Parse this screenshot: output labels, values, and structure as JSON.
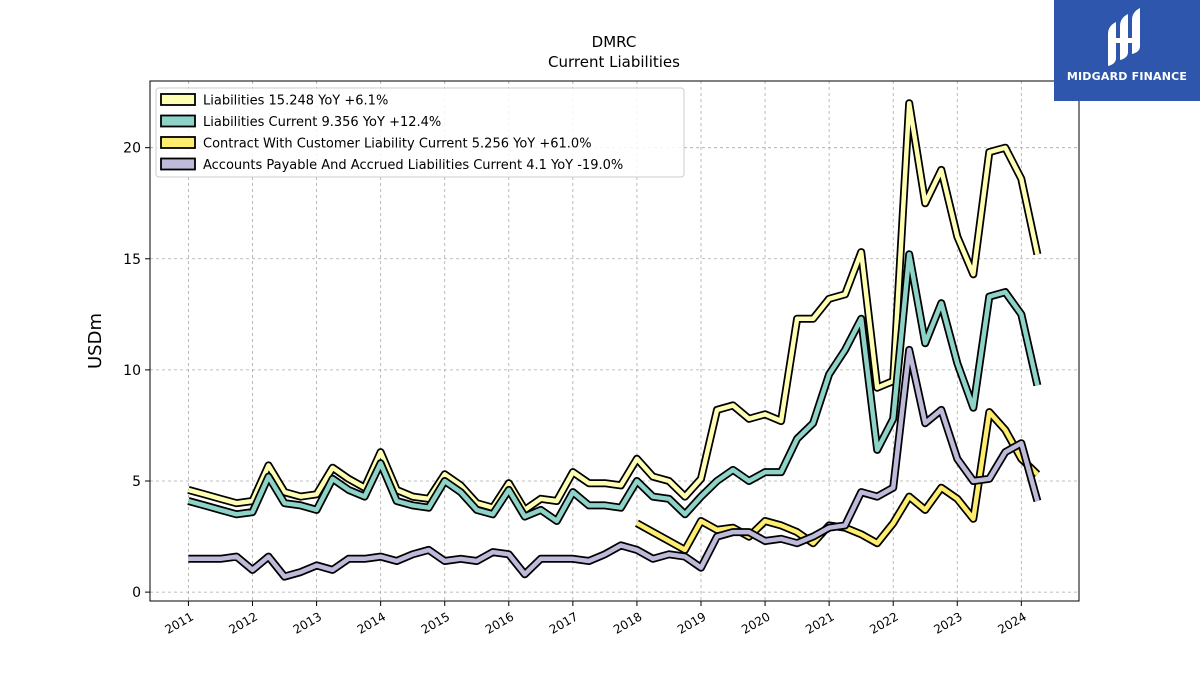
{
  "logo": {
    "text": "MIDGARD FINANCE",
    "bg_color": "#2d56ac"
  },
  "chart_data": {
    "type": "line",
    "title": "DMRC",
    "subtitle": "Current  Liabilities",
    "xlabel": "",
    "ylabel": "USDm",
    "xlim": [
      2010.4,
      2024.9
    ],
    "ylim": [
      -0.4,
      23.0
    ],
    "xticks": [
      2011,
      2012,
      2013,
      2014,
      2015,
      2016,
      2017,
      2018,
      2019,
      2020,
      2021,
      2022,
      2023,
      2024
    ],
    "xtick_labels": [
      "2011",
      "2012",
      "2013",
      "2014",
      "2015",
      "2016",
      "2017",
      "2018",
      "2019",
      "2020",
      "2021",
      "2022",
      "2023",
      "2024"
    ],
    "yticks": [
      0,
      5,
      10,
      15,
      20
    ],
    "ytick_labels": [
      "0",
      "5",
      "10",
      "15",
      "20"
    ],
    "grid": true,
    "legend_position": "top-left",
    "series": [
      {
        "name": "Liabilities",
        "legend_label": "Liabilities  15.248 YoY +6.1%",
        "color": "#ffffb3",
        "x": [
          2011.0,
          2011.25,
          2011.5,
          2011.75,
          2012.0,
          2012.25,
          2012.5,
          2012.75,
          2013.0,
          2013.25,
          2013.5,
          2013.75,
          2014.0,
          2014.25,
          2014.5,
          2014.75,
          2015.0,
          2015.25,
          2015.5,
          2015.75,
          2016.0,
          2016.25,
          2016.5,
          2016.75,
          2017.0,
          2017.25,
          2017.5,
          2017.75,
          2018.0,
          2018.25,
          2018.5,
          2018.75,
          2019.0,
          2019.25,
          2019.5,
          2019.75,
          2020.0,
          2020.25,
          2020.5,
          2020.75,
          2021.0,
          2021.25,
          2021.5,
          2021.75,
          2022.0,
          2022.25,
          2022.5,
          2022.75,
          2023.0,
          2023.25,
          2023.5,
          2023.75,
          2024.0,
          2024.25
        ],
        "values": [
          4.6,
          4.4,
          4.2,
          4.0,
          4.1,
          5.7,
          4.5,
          4.3,
          4.4,
          5.6,
          5.1,
          4.7,
          6.3,
          4.6,
          4.3,
          4.2,
          5.3,
          4.8,
          4.0,
          3.8,
          4.9,
          3.7,
          4.2,
          4.1,
          5.4,
          4.9,
          4.9,
          4.8,
          6.0,
          5.2,
          5.0,
          4.3,
          5.1,
          8.2,
          8.4,
          7.8,
          8.0,
          7.7,
          12.3,
          12.3,
          13.2,
          13.4,
          15.3,
          9.2,
          9.5,
          22.0,
          17.5,
          19.0,
          16.0,
          14.3,
          19.8,
          20.0,
          18.6,
          15.2
        ]
      },
      {
        "name": "Liabilities Current",
        "legend_label": "Liabilities Current  9.356 YoY +12.4%",
        "color": "#8dd3c7",
        "x": [
          2011.0,
          2011.25,
          2011.5,
          2011.75,
          2012.0,
          2012.25,
          2012.5,
          2012.75,
          2013.0,
          2013.25,
          2013.5,
          2013.75,
          2014.0,
          2014.25,
          2014.5,
          2014.75,
          2015.0,
          2015.25,
          2015.5,
          2015.75,
          2016.0,
          2016.25,
          2016.5,
          2016.75,
          2017.0,
          2017.25,
          2017.5,
          2017.75,
          2018.0,
          2018.25,
          2018.5,
          2018.75,
          2019.0,
          2019.25,
          2019.5,
          2019.75,
          2020.0,
          2020.25,
          2020.5,
          2020.75,
          2021.0,
          2021.25,
          2021.5,
          2021.75,
          2022.0,
          2022.25,
          2022.5,
          2022.75,
          2023.0,
          2023.25,
          2023.5,
          2023.75,
          2024.0,
          2024.25
        ],
        "values": [
          4.1,
          3.9,
          3.7,
          3.5,
          3.6,
          5.2,
          4.0,
          3.9,
          3.7,
          5.1,
          4.6,
          4.3,
          5.8,
          4.1,
          3.9,
          3.8,
          5.0,
          4.5,
          3.7,
          3.5,
          4.6,
          3.4,
          3.7,
          3.2,
          4.5,
          3.9,
          3.9,
          3.8,
          5.0,
          4.3,
          4.2,
          3.5,
          4.3,
          5.0,
          5.5,
          5.0,
          5.4,
          5.4,
          6.9,
          7.6,
          9.8,
          10.9,
          12.3,
          6.4,
          7.8,
          15.2,
          11.2,
          13.0,
          10.3,
          8.3,
          13.3,
          13.5,
          12.5,
          9.3
        ]
      },
      {
        "name": "Contract With Customer Liability Current",
        "legend_label": "Contract With Customer Liability Current  5.256 YoY +61.0%",
        "color": "#ffed6f",
        "x": [
          2018.0,
          2018.25,
          2018.5,
          2018.75,
          2019.0,
          2019.25,
          2019.5,
          2019.75,
          2020.0,
          2020.25,
          2020.5,
          2020.75,
          2021.0,
          2021.25,
          2021.5,
          2021.75,
          2022.0,
          2022.25,
          2022.5,
          2022.75,
          2023.0,
          2023.25,
          2023.5,
          2023.75,
          2024.0,
          2024.25
        ],
        "values": [
          3.1,
          2.7,
          2.3,
          1.9,
          3.2,
          2.8,
          2.9,
          2.5,
          3.2,
          3.0,
          2.7,
          2.2,
          3.0,
          2.9,
          2.6,
          2.2,
          3.1,
          4.3,
          3.7,
          4.7,
          4.2,
          3.3,
          8.1,
          7.3,
          6.0,
          5.3
        ]
      },
      {
        "name": "Accounts Payable And Accrued Liabilities Current",
        "legend_label": "Accounts Payable And Accrued Liabilities Current  4.1 YoY -19.0%",
        "color": "#bebada",
        "x": [
          2011.0,
          2011.25,
          2011.5,
          2011.75,
          2012.0,
          2012.25,
          2012.5,
          2012.75,
          2013.0,
          2013.25,
          2013.5,
          2013.75,
          2014.0,
          2014.25,
          2014.5,
          2014.75,
          2015.0,
          2015.25,
          2015.5,
          2015.75,
          2016.0,
          2016.25,
          2016.5,
          2016.75,
          2017.0,
          2017.25,
          2017.5,
          2017.75,
          2018.0,
          2018.25,
          2018.5,
          2018.75,
          2019.0,
          2019.25,
          2019.5,
          2019.75,
          2020.0,
          2020.25,
          2020.5,
          2020.75,
          2021.0,
          2021.25,
          2021.5,
          2021.75,
          2022.0,
          2022.25,
          2022.5,
          2022.75,
          2023.0,
          2023.25,
          2023.5,
          2023.75,
          2024.0,
          2024.25
        ],
        "values": [
          1.5,
          1.5,
          1.5,
          1.6,
          1.0,
          1.6,
          0.7,
          0.9,
          1.2,
          1.0,
          1.5,
          1.5,
          1.6,
          1.4,
          1.7,
          1.9,
          1.4,
          1.5,
          1.4,
          1.8,
          1.7,
          0.8,
          1.5,
          1.5,
          1.5,
          1.4,
          1.7,
          2.1,
          1.9,
          1.5,
          1.7,
          1.6,
          1.1,
          2.5,
          2.7,
          2.7,
          2.3,
          2.4,
          2.2,
          2.5,
          2.9,
          3.0,
          4.5,
          4.3,
          4.7,
          10.9,
          7.6,
          8.2,
          6.0,
          5.0,
          5.1,
          6.3,
          6.7,
          4.1
        ]
      }
    ]
  }
}
